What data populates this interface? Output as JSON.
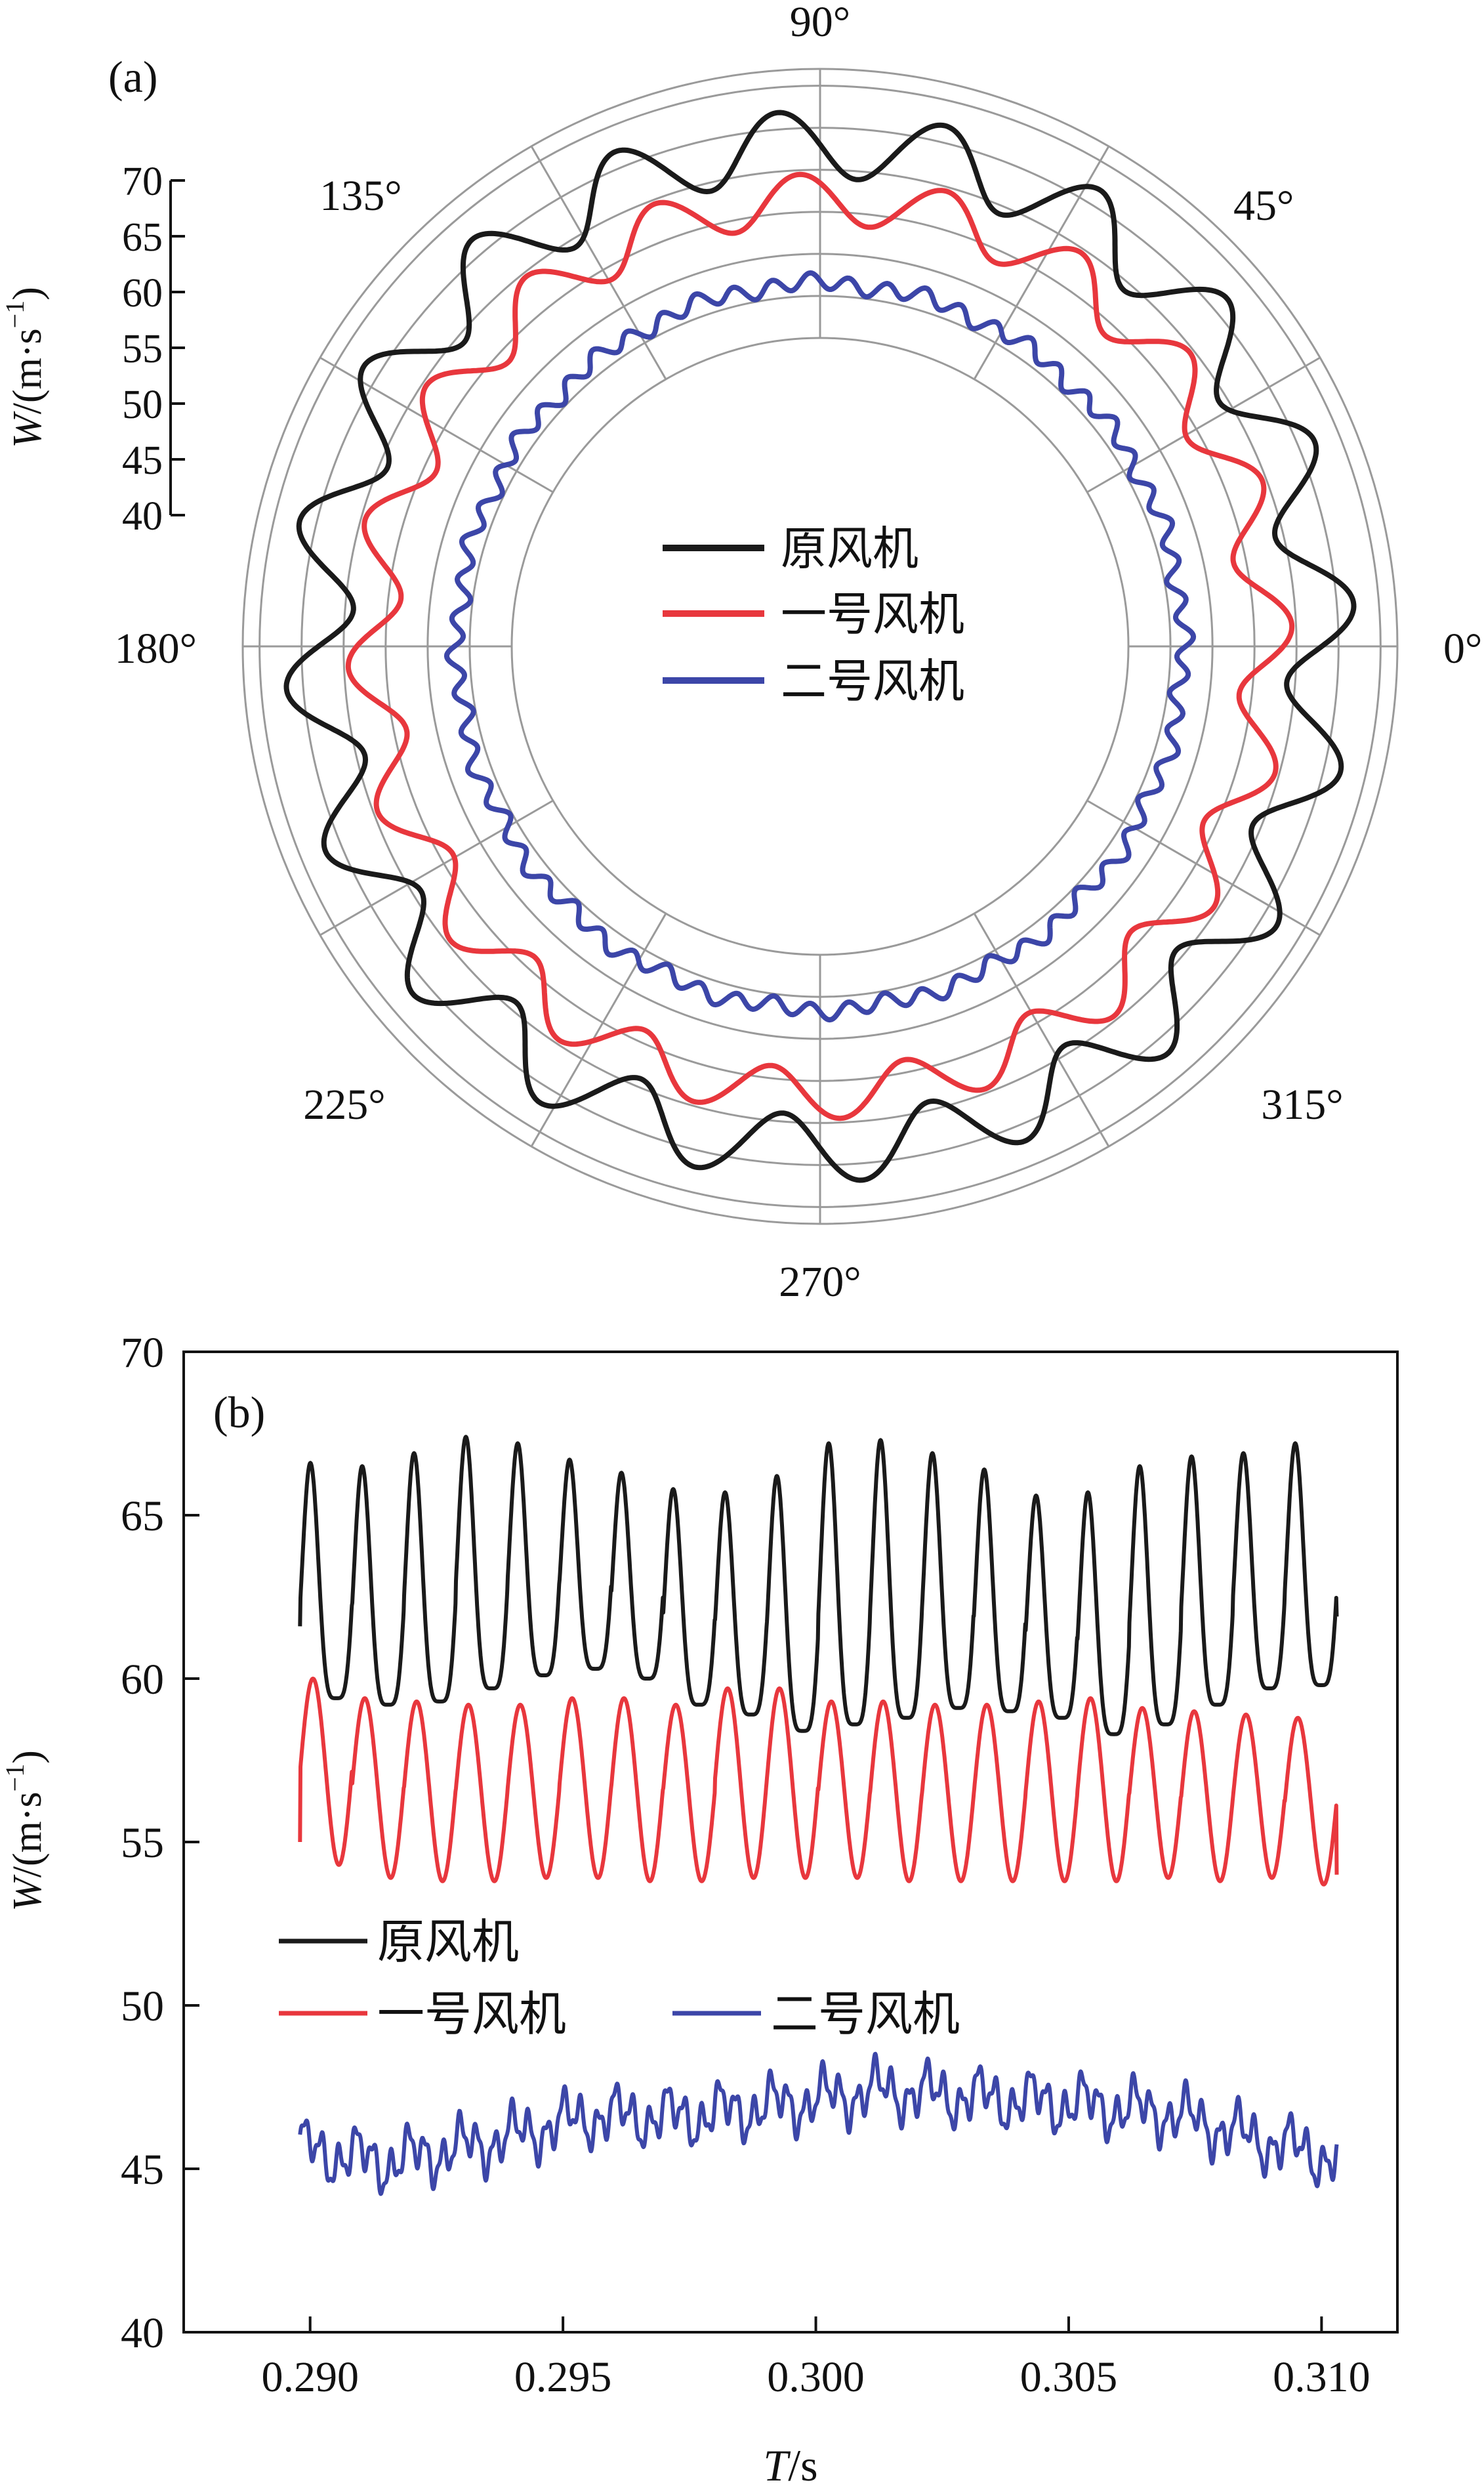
{
  "chart_data": [
    {
      "panel": "(a)",
      "type": "polar-line",
      "ylabel": "W/(m·s⁻¹)",
      "ylabel_italic": "W",
      "ylabel_rest": "/(m·s",
      "ylabel_exp": "−1",
      "ylabel_close": ")",
      "r_ticks": [
        40,
        45,
        50,
        55,
        60,
        65,
        70
      ],
      "r_range": [
        40,
        72
      ],
      "angle_labels": [
        "0°",
        "45°",
        "90°",
        "135°",
        "180°",
        "225°",
        "270°",
        "315°"
      ],
      "legend": [
        "原风机",
        "一号风机",
        "二号风机"
      ],
      "series": [
        {
          "name": "原风机",
          "color": "#1a1a1a",
          "mean": 63.0,
          "amplitude": 4.0,
          "cycles": 20
        },
        {
          "name": "一号风机",
          "color": "#e8373d",
          "mean": 56.5,
          "amplitude": 3.0,
          "cycles": 20
        },
        {
          "name": "二号风机",
          "color": "#3c46a8",
          "mean": 46.5,
          "amplitude": 0.9,
          "cycles": 60
        }
      ]
    },
    {
      "panel": "(b)",
      "type": "line",
      "xlabel": "T/s",
      "xlabel_italic": "T",
      "xlabel_rest": "/s",
      "ylabel": "W/(m·s⁻¹)",
      "xlim": [
        0.2875,
        0.3115
      ],
      "ylim": [
        40,
        70
      ],
      "x_ticks": [
        0.29,
        0.295,
        0.3,
        0.305,
        0.31
      ],
      "x_tick_labels": [
        "0.290",
        "0.295",
        "0.300",
        "0.305",
        "0.310"
      ],
      "y_ticks": [
        40,
        45,
        50,
        55,
        60,
        65,
        70
      ],
      "legend": [
        "原风机",
        "一号风机",
        "二号风机"
      ],
      "series": [
        {
          "name": "原风机",
          "color": "#1a1a1a",
          "x_start": 0.2898,
          "x_end": 0.3103,
          "peaks": [
            66.6,
            66.5,
            66.9,
            67.4,
            67.2,
            66.7,
            66.3,
            65.8,
            65.7,
            66.2,
            67.2,
            67.3,
            66.9,
            66.4,
            65.6,
            65.7,
            66.5,
            66.8,
            66.9,
            67.2
          ],
          "troughs": [
            59.4,
            59.2,
            59.3,
            59.7,
            60.1,
            60.3,
            60.0,
            59.2,
            58.9,
            58.4,
            58.6,
            58.8,
            59.1,
            59.0,
            58.8,
            58.3,
            58.6,
            59.2,
            59.7,
            59.8
          ],
          "start_value": 61.6,
          "end_value": 61.9
        },
        {
          "name": "一号风机",
          "color": "#e8373d",
          "x_start": 0.2898,
          "x_end": 0.3103,
          "peaks": [
            60.0,
            59.4,
            59.3,
            59.2,
            59.2,
            59.4,
            59.4,
            59.2,
            59.7,
            59.7,
            59.3,
            59.3,
            59.2,
            59.2,
            59.3,
            59.4,
            59.1,
            59.0,
            58.9,
            58.8
          ],
          "troughs": [
            54.3,
            53.9,
            53.8,
            53.8,
            53.9,
            53.9,
            53.8,
            53.8,
            53.9,
            53.9,
            53.9,
            53.8,
            53.8,
            53.8,
            53.8,
            53.8,
            53.9,
            53.8,
            53.9,
            53.7
          ],
          "start_value": 55.0,
          "end_value": 54.0
        },
        {
          "name": "二号风机",
          "color": "#3c46a8",
          "x_start": 0.2898,
          "x_end": 0.3103,
          "envelope_x": [
            0.2898,
            0.2915,
            0.2935,
            0.2955,
            0.2975,
            0.2995,
            0.3013,
            0.303,
            0.305,
            0.307,
            0.3085,
            0.3103
          ],
          "envelope_y": [
            45.6,
            45.2,
            45.8,
            46.6,
            46.6,
            47.0,
            47.4,
            47.2,
            47.0,
            46.7,
            46.0,
            45.3
          ],
          "ripple": 0.55
        }
      ]
    }
  ]
}
